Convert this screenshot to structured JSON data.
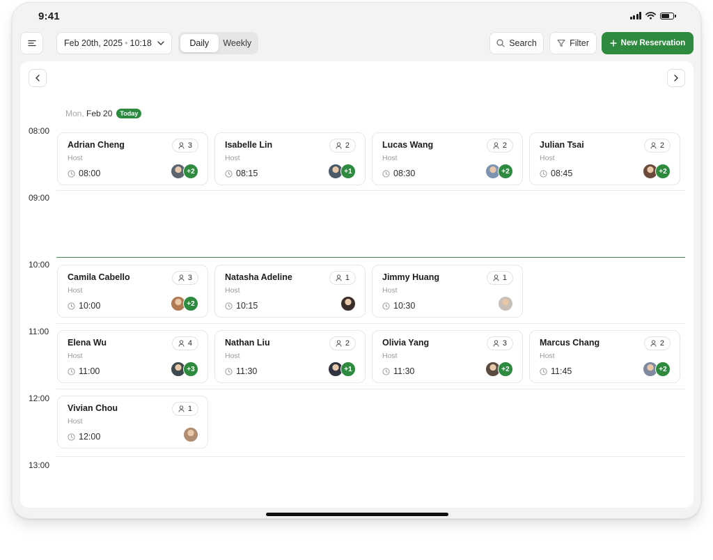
{
  "status_bar": {
    "time": "9:41"
  },
  "toolbar": {
    "date_label": "Feb 20th, 2025",
    "time_label": "10:18",
    "view_options": [
      "Daily",
      "Weekly"
    ],
    "active_view": "Daily",
    "search_label": "Search",
    "filter_label": "Filter",
    "new_reservation_label": "New Reservation"
  },
  "day": {
    "weekday": "Mon,",
    "date": "Feb 20",
    "today_badge": "Today"
  },
  "hours": [
    "08:00",
    "09:00",
    "10:00",
    "11:00",
    "12:00",
    "13:00"
  ],
  "reservations": [
    {
      "name": "Adrian Cheng",
      "role": "Host",
      "time": "08:00",
      "guests": "3",
      "extra": "+2"
    },
    {
      "name": "Isabelle Lin",
      "role": "Host",
      "time": "08:15",
      "guests": "2",
      "extra": "+1"
    },
    {
      "name": "Lucas Wang",
      "role": "Host",
      "time": "08:30",
      "guests": "2",
      "extra": "+2"
    },
    {
      "name": "Julian Tsai",
      "role": "Host",
      "time": "08:45",
      "guests": "2",
      "extra": "+2"
    },
    {
      "name": "Camila Cabello",
      "role": "Host",
      "time": "10:00",
      "guests": "3",
      "extra": "+2"
    },
    {
      "name": "Natasha Adeline",
      "role": "Host",
      "time": "10:15",
      "guests": "1",
      "extra": ""
    },
    {
      "name": "Jimmy Huang",
      "role": "Host",
      "time": "10:30",
      "guests": "1",
      "extra": ""
    },
    {
      "name": "Elena Wu",
      "role": "Host",
      "time": "11:00",
      "guests": "4",
      "extra": "+3"
    },
    {
      "name": "Nathan Liu",
      "role": "Host",
      "time": "11:30",
      "guests": "2",
      "extra": "+1"
    },
    {
      "name": "Olivia Yang",
      "role": "Host",
      "time": "11:30",
      "guests": "3",
      "extra": "+2"
    },
    {
      "name": "Marcus Chang",
      "role": "Host",
      "time": "11:45",
      "guests": "2",
      "extra": "+2"
    },
    {
      "name": "Vivian Chou",
      "role": "Host",
      "time": "12:00",
      "guests": "1",
      "extra": ""
    }
  ],
  "colors": {
    "accent": "#2e8a3f",
    "now_line": "#3d8a4c"
  },
  "icons": [
    "menu-icon",
    "chevron-down-icon",
    "search-icon",
    "filter-icon",
    "plus-icon",
    "chevron-left-icon",
    "chevron-right-icon",
    "person-icon",
    "clock-icon"
  ]
}
